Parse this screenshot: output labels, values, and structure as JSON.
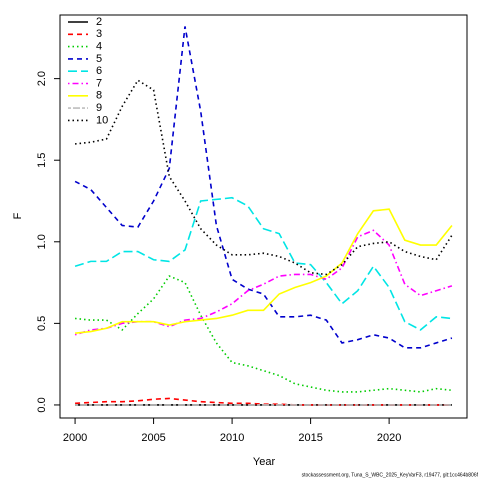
{
  "chart_data": {
    "type": "line",
    "x_label": "Year",
    "y_label": "F",
    "footer": "stockassessment.org, Tuna_S_WBC_2025_KeyVarF3, r19477, git:1cc464b806f",
    "x": [
      2000,
      2001,
      2002,
      2003,
      2004,
      2005,
      2006,
      2007,
      2008,
      2009,
      2010,
      2011,
      2012,
      2013,
      2014,
      2015,
      2016,
      2017,
      2018,
      2019,
      2020,
      2021,
      2022,
      2023,
      2024
    ],
    "xlim": [
      1999.04,
      2024.96
    ],
    "xticks": [
      2000,
      2005,
      2010,
      2015,
      2020
    ],
    "ylim": [
      -0.08,
      2.39
    ],
    "yticks": [
      {
        "value": 0,
        "label": "0.0"
      },
      0.5,
      {
        "value": 1,
        "label": "1.0"
      },
      1.5,
      {
        "value": 2,
        "label": "2.0"
      }
    ],
    "legend": "top-left",
    "series": [
      {
        "name": "2",
        "color": "#000000",
        "dash": "solid",
        "values": [
          0,
          0,
          0,
          0,
          0,
          0,
          0,
          0,
          0,
          0,
          0,
          0,
          0,
          0,
          0,
          0,
          0,
          0,
          0,
          0,
          0,
          0,
          0,
          0,
          0
        ]
      },
      {
        "name": "3",
        "color": "#ff0000",
        "dash": "dashed",
        "values": [
          0.01,
          0.015,
          0.02,
          0.02,
          0.025,
          0.035,
          0.04,
          0.03,
          0.02,
          0.015,
          0.01,
          0.01,
          0.005,
          0.005,
          0,
          0,
          0,
          0,
          0,
          0,
          0,
          0,
          0,
          0,
          0
        ]
      },
      {
        "name": "4",
        "color": "#00cc00",
        "dash": "dotted",
        "values": [
          0.53,
          0.52,
          0.52,
          0.46,
          0.56,
          0.65,
          0.79,
          0.75,
          0.55,
          0.38,
          0.26,
          0.24,
          0.21,
          0.18,
          0.13,
          0.11,
          0.09,
          0.08,
          0.08,
          0.09,
          0.1,
          0.09,
          0.08,
          0.1,
          0.09
        ]
      },
      {
        "name": "5",
        "color": "#0000cc",
        "dash": "dashed",
        "values": [
          1.37,
          1.32,
          1.21,
          1.1,
          1.09,
          1.25,
          1.45,
          2.32,
          1.8,
          1.1,
          0.77,
          0.71,
          0.68,
          0.54,
          0.54,
          0.55,
          0.52,
          0.38,
          0.4,
          0.43,
          0.41,
          0.35,
          0.35,
          0.38,
          0.41
        ]
      },
      {
        "name": "6",
        "color": "#00e5e5",
        "dash": "longdash",
        "values": [
          0.85,
          0.88,
          0.88,
          0.94,
          0.94,
          0.89,
          0.88,
          0.95,
          1.25,
          1.26,
          1.27,
          1.22,
          1.08,
          1.05,
          0.87,
          0.86,
          0.75,
          0.62,
          0.7,
          0.85,
          0.72,
          0.51,
          0.46,
          0.54,
          0.53
        ]
      },
      {
        "name": "7",
        "color": "#ff00ff",
        "dash": "dotdash",
        "values": [
          0.43,
          0.46,
          0.47,
          0.5,
          0.51,
          0.51,
          0.48,
          0.52,
          0.53,
          0.57,
          0.62,
          0.7,
          0.74,
          0.79,
          0.8,
          0.8,
          0.77,
          0.84,
          1.03,
          1.07,
          0.98,
          0.74,
          0.67,
          0.7,
          0.73
        ]
      },
      {
        "name": "8",
        "color": "#ffff00",
        "dash": "solid",
        "values": [
          0.44,
          0.45,
          0.47,
          0.51,
          0.51,
          0.51,
          0.49,
          0.51,
          0.52,
          0.53,
          0.55,
          0.58,
          0.58,
          0.68,
          0.72,
          0.75,
          0.79,
          0.87,
          1.05,
          1.19,
          1.2,
          1.01,
          0.98,
          0.98,
          1.1
        ]
      },
      {
        "name": "9",
        "color": "#bebebe",
        "dash": "twodash",
        "values": [
          0,
          0,
          0,
          0,
          0,
          0,
          0,
          0,
          0,
          0,
          0,
          0,
          0,
          0,
          0,
          0,
          0,
          0,
          0,
          0,
          0,
          0,
          0,
          0,
          0
        ]
      },
      {
        "name": "10",
        "color": "#000000",
        "dash": "dotted",
        "values": [
          1.6,
          1.61,
          1.63,
          1.83,
          1.99,
          1.93,
          1.4,
          1.25,
          1.08,
          0.98,
          0.92,
          0.92,
          0.93,
          0.91,
          0.87,
          0.81,
          0.8,
          0.86,
          0.97,
          0.99,
          1.0,
          0.94,
          0.91,
          0.89,
          1.04
        ]
      }
    ]
  }
}
